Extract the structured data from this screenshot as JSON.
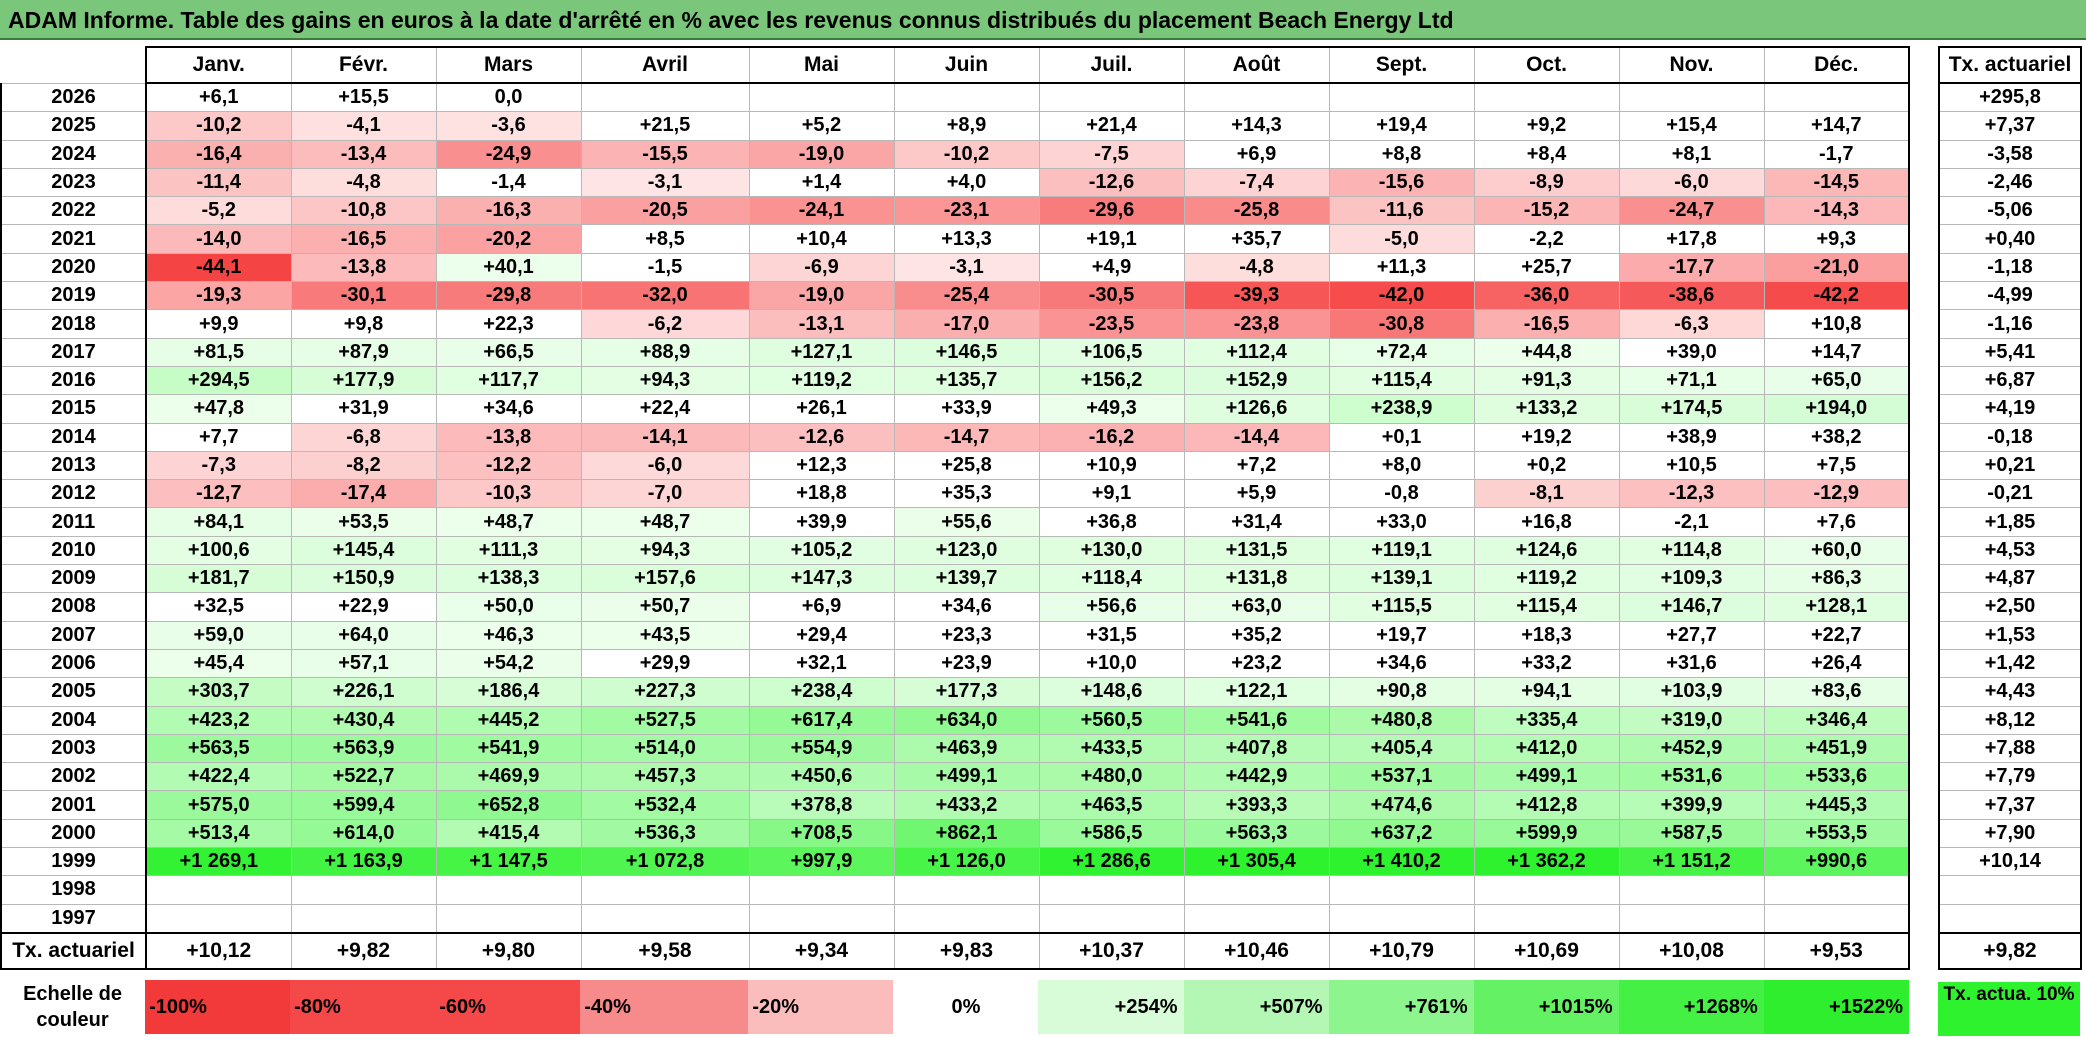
{
  "title": "ADAM Informe. Table des gains en euros à la date d'arrêté en % avec les revenus connus distribués du placement Beach Energy Ltd",
  "months": [
    "Janv.",
    "Févr.",
    "Mars",
    "Avril",
    "Mai",
    "Juin",
    "Juil.",
    "Août",
    "Sept.",
    "Oct.",
    "Nov.",
    "Déc."
  ],
  "side_header": "Tx. actuariel",
  "rows": [
    {
      "year": "2026",
      "values": [
        "+6,1",
        "+15,5",
        "0,0",
        "",
        "",
        "",
        "",
        "",
        "",
        "",
        "",
        ""
      ],
      "rate": "+295,8"
    },
    {
      "year": "2025",
      "values": [
        "-10,2",
        "-4,1",
        "-3,6",
        "+21,5",
        "+5,2",
        "+8,9",
        "+21,4",
        "+14,3",
        "+19,4",
        "+9,2",
        "+15,4",
        "+14,7"
      ],
      "rate": "+7,37"
    },
    {
      "year": "2024",
      "values": [
        "-16,4",
        "-13,4",
        "-24,9",
        "-15,5",
        "-19,0",
        "-10,2",
        "-7,5",
        "+6,9",
        "+8,8",
        "+8,4",
        "+8,1",
        "-1,7"
      ],
      "rate": "-3,58"
    },
    {
      "year": "2023",
      "values": [
        "-11,4",
        "-4,8",
        "-1,4",
        "-3,1",
        "+1,4",
        "+4,0",
        "-12,6",
        "-7,4",
        "-15,6",
        "-8,9",
        "-6,0",
        "-14,5"
      ],
      "rate": "-2,46"
    },
    {
      "year": "2022",
      "values": [
        "-5,2",
        "-10,8",
        "-16,3",
        "-20,5",
        "-24,1",
        "-23,1",
        "-29,6",
        "-25,8",
        "-11,6",
        "-15,2",
        "-24,7",
        "-14,3"
      ],
      "rate": "-5,06"
    },
    {
      "year": "2021",
      "values": [
        "-14,0",
        "-16,5",
        "-20,2",
        "+8,5",
        "+10,4",
        "+13,3",
        "+19,1",
        "+35,7",
        "-5,0",
        "-2,2",
        "+17,8",
        "+9,3"
      ],
      "rate": "+0,40"
    },
    {
      "year": "2020",
      "values": [
        "-44,1",
        "-13,8",
        "+40,1",
        "-1,5",
        "-6,9",
        "-3,1",
        "+4,9",
        "-4,8",
        "+11,3",
        "+25,7",
        "-17,7",
        "-21,0"
      ],
      "rate": "-1,18"
    },
    {
      "year": "2019",
      "values": [
        "-19,3",
        "-30,1",
        "-29,8",
        "-32,0",
        "-19,0",
        "-25,4",
        "-30,5",
        "-39,3",
        "-42,0",
        "-36,0",
        "-38,6",
        "-42,2"
      ],
      "rate": "-4,99"
    },
    {
      "year": "2018",
      "values": [
        "+9,9",
        "+9,8",
        "+22,3",
        "-6,2",
        "-13,1",
        "-17,0",
        "-23,5",
        "-23,8",
        "-30,8",
        "-16,5",
        "-6,3",
        "+10,8"
      ],
      "rate": "-1,16"
    },
    {
      "year": "2017",
      "values": [
        "+81,5",
        "+87,9",
        "+66,5",
        "+88,9",
        "+127,1",
        "+146,5",
        "+106,5",
        "+112,4",
        "+72,4",
        "+44,8",
        "+39,0",
        "+14,7"
      ],
      "rate": "+5,41"
    },
    {
      "year": "2016",
      "values": [
        "+294,5",
        "+177,9",
        "+117,7",
        "+94,3",
        "+119,2",
        "+135,7",
        "+156,2",
        "+152,9",
        "+115,4",
        "+91,3",
        "+71,1",
        "+65,0"
      ],
      "rate": "+6,87"
    },
    {
      "year": "2015",
      "values": [
        "+47,8",
        "+31,9",
        "+34,6",
        "+22,4",
        "+26,1",
        "+33,9",
        "+49,3",
        "+126,6",
        "+238,9",
        "+133,2",
        "+174,5",
        "+194,0"
      ],
      "rate": "+4,19"
    },
    {
      "year": "2014",
      "values": [
        "+7,7",
        "-6,8",
        "-13,8",
        "-14,1",
        "-12,6",
        "-14,7",
        "-16,2",
        "-14,4",
        "+0,1",
        "+19,2",
        "+38,9",
        "+38,2"
      ],
      "rate": "-0,18"
    },
    {
      "year": "2013",
      "values": [
        "-7,3",
        "-8,2",
        "-12,2",
        "-6,0",
        "+12,3",
        "+25,8",
        "+10,9",
        "+7,2",
        "+8,0",
        "+0,2",
        "+10,5",
        "+7,5"
      ],
      "rate": "+0,21"
    },
    {
      "year": "2012",
      "values": [
        "-12,7",
        "-17,4",
        "-10,3",
        "-7,0",
        "+18,8",
        "+35,3",
        "+9,1",
        "+5,9",
        "-0,8",
        "-8,1",
        "-12,3",
        "-12,9"
      ],
      "rate": "-0,21"
    },
    {
      "year": "2011",
      "values": [
        "+84,1",
        "+53,5",
        "+48,7",
        "+48,7",
        "+39,9",
        "+55,6",
        "+36,8",
        "+31,4",
        "+33,0",
        "+16,8",
        "-2,1",
        "+7,6"
      ],
      "rate": "+1,85"
    },
    {
      "year": "2010",
      "values": [
        "+100,6",
        "+145,4",
        "+111,3",
        "+94,3",
        "+105,2",
        "+123,0",
        "+130,0",
        "+131,5",
        "+119,1",
        "+124,6",
        "+114,8",
        "+60,0"
      ],
      "rate": "+4,53"
    },
    {
      "year": "2009",
      "values": [
        "+181,7",
        "+150,9",
        "+138,3",
        "+157,6",
        "+147,3",
        "+139,7",
        "+118,4",
        "+131,8",
        "+139,1",
        "+119,2",
        "+109,3",
        "+86,3"
      ],
      "rate": "+4,87"
    },
    {
      "year": "2008",
      "values": [
        "+32,5",
        "+22,9",
        "+50,0",
        "+50,7",
        "+6,9",
        "+34,6",
        "+56,6",
        "+63,0",
        "+115,5",
        "+115,4",
        "+146,7",
        "+128,1"
      ],
      "rate": "+2,50"
    },
    {
      "year": "2007",
      "values": [
        "+59,0",
        "+64,0",
        "+46,3",
        "+43,5",
        "+29,4",
        "+23,3",
        "+31,5",
        "+35,2",
        "+19,7",
        "+18,3",
        "+27,7",
        "+22,7"
      ],
      "rate": "+1,53"
    },
    {
      "year": "2006",
      "values": [
        "+45,4",
        "+57,1",
        "+54,2",
        "+29,9",
        "+32,1",
        "+23,9",
        "+10,0",
        "+23,2",
        "+34,6",
        "+33,2",
        "+31,6",
        "+26,4"
      ],
      "rate": "+1,42"
    },
    {
      "year": "2005",
      "values": [
        "+303,7",
        "+226,1",
        "+186,4",
        "+227,3",
        "+238,4",
        "+177,3",
        "+148,6",
        "+122,1",
        "+90,8",
        "+94,1",
        "+103,9",
        "+83,6"
      ],
      "rate": "+4,43"
    },
    {
      "year": "2004",
      "values": [
        "+423,2",
        "+430,4",
        "+445,2",
        "+527,5",
        "+617,4",
        "+634,0",
        "+560,5",
        "+541,6",
        "+480,8",
        "+335,4",
        "+319,0",
        "+346,4"
      ],
      "rate": "+8,12"
    },
    {
      "year": "2003",
      "values": [
        "+563,5",
        "+563,9",
        "+541,9",
        "+514,0",
        "+554,9",
        "+463,9",
        "+433,5",
        "+407,8",
        "+405,4",
        "+412,0",
        "+452,9",
        "+451,9"
      ],
      "rate": "+7,88"
    },
    {
      "year": "2002",
      "values": [
        "+422,4",
        "+522,7",
        "+469,9",
        "+457,3",
        "+450,6",
        "+499,1",
        "+480,0",
        "+442,9",
        "+537,1",
        "+499,1",
        "+531,6",
        "+533,6"
      ],
      "rate": "+7,79"
    },
    {
      "year": "2001",
      "values": [
        "+575,0",
        "+599,4",
        "+652,8",
        "+532,4",
        "+378,8",
        "+433,2",
        "+463,5",
        "+393,3",
        "+474,6",
        "+412,8",
        "+399,9",
        "+445,3"
      ],
      "rate": "+7,37"
    },
    {
      "year": "2000",
      "values": [
        "+513,4",
        "+614,0",
        "+415,4",
        "+536,3",
        "+708,5",
        "+862,1",
        "+586,5",
        "+563,3",
        "+637,2",
        "+599,9",
        "+587,5",
        "+553,5"
      ],
      "rate": "+7,90"
    },
    {
      "year": "1999",
      "values": [
        "+1 269,1",
        "+1 163,9",
        "+1 147,5",
        "+1 072,8",
        "+997,9",
        "+1 126,0",
        "+1 286,6",
        "+1 305,4",
        "+1 410,2",
        "+1 362,2",
        "+1 151,2",
        "+990,6"
      ],
      "rate": "+10,14"
    },
    {
      "year": "1998",
      "values": [
        "",
        "",
        "",
        "",
        "",
        "",
        "",
        "",
        "",
        "",
        "",
        ""
      ],
      "rate": ""
    },
    {
      "year": "1997",
      "values": [
        "",
        "",
        "",
        "",
        "",
        "",
        "",
        "",
        "",
        "",
        "",
        ""
      ],
      "rate": ""
    }
  ],
  "footer": {
    "label": "Tx. actuariel",
    "values": [
      "+10,12",
      "+9,82",
      "+9,80",
      "+9,58",
      "+9,34",
      "+9,83",
      "+10,37",
      "+10,46",
      "+10,79",
      "+10,69",
      "+10,08",
      "+9,53"
    ],
    "total": "+9,82"
  },
  "scale": {
    "label": "Echelle de couleur",
    "items": [
      {
        "text": "-100%",
        "color": "#f23a3a"
      },
      {
        "text": "-80%",
        "color": "#f54848"
      },
      {
        "text": "-60%",
        "color": "#f54848"
      },
      {
        "text": "-40%",
        "color": "#f78a8a"
      },
      {
        "text": "-20%",
        "color": "#fbbcbc"
      },
      {
        "text": "0%",
        "color": "#ffffff"
      },
      {
        "text": "+254%",
        "color": "#d8fbd8"
      },
      {
        "text": "+507%",
        "color": "#b4f7b4"
      },
      {
        "text": "+761%",
        "color": "#8df58d"
      },
      {
        "text": "+1015%",
        "color": "#64f264"
      },
      {
        "text": "+1268%",
        "color": "#45f045"
      },
      {
        "text": "+1522%",
        "color": "#2eee2e"
      }
    ],
    "side_label": "Tx. actua. 10%",
    "side_color": "#2ef22e"
  }
}
